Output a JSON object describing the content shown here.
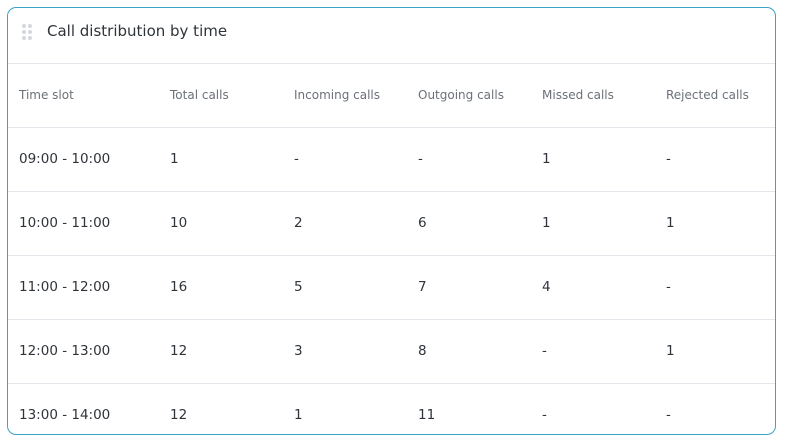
{
  "widget": {
    "title": "Call distribution by time",
    "drag_handle_icon": "drag-handle-icon",
    "border_color": "#3aa3c9"
  },
  "table": {
    "columns": [
      "Time slot",
      "Total calls",
      "Incoming calls",
      "Outgoing calls",
      "Missed calls",
      "Rejected calls"
    ],
    "rows": [
      [
        "09:00 - 10:00",
        "1",
        "-",
        "-",
        "1",
        "-"
      ],
      [
        "10:00 - 11:00",
        "10",
        "2",
        "6",
        "1",
        "1"
      ],
      [
        "11:00 - 12:00",
        "16",
        "5",
        "7",
        "4",
        "-"
      ],
      [
        "12:00 - 13:00",
        "12",
        "3",
        "8",
        "-",
        "1"
      ],
      [
        "13:00 - 14:00",
        "12",
        "1",
        "11",
        "-",
        "-"
      ]
    ]
  }
}
